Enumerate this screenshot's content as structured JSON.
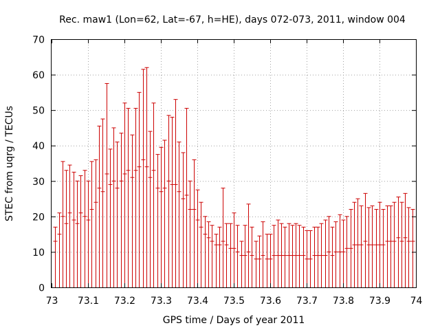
{
  "chart_data": {
    "type": "errorbar",
    "title": "Rec. maw1 (Lon=62, Lat=-67, h=HE), days 072-073, 2011, window 004",
    "xlabel": "GPS time / Days of year 2011",
    "ylabel": "STEC from uqrg / TECUs",
    "xlim": [
      73,
      74
    ],
    "ylim": [
      0,
      70
    ],
    "xticks": [
      "73",
      "73.1",
      "73.2",
      "73.3",
      "73.4",
      "73.5",
      "73.6",
      "73.7",
      "73.8",
      "73.9",
      "74"
    ],
    "yticks": [
      "0",
      "10",
      "20",
      "30",
      "40",
      "50",
      "60",
      "70"
    ],
    "grid": true,
    "color": "#cc0000",
    "x": [
      73.01,
      73.02,
      73.03,
      73.04,
      73.05,
      73.06,
      73.07,
      73.08,
      73.09,
      73.1,
      73.11,
      73.12,
      73.13,
      73.14,
      73.15,
      73.16,
      73.17,
      73.18,
      73.19,
      73.2,
      73.21,
      73.22,
      73.23,
      73.24,
      73.25,
      73.26,
      73.27,
      73.28,
      73.29,
      73.3,
      73.31,
      73.32,
      73.33,
      73.34,
      73.35,
      73.36,
      73.37,
      73.38,
      73.39,
      73.4,
      73.41,
      73.42,
      73.43,
      73.44,
      73.45,
      73.46,
      73.47,
      73.48,
      73.49,
      73.5,
      73.51,
      73.52,
      73.53,
      73.54,
      73.55,
      73.56,
      73.57,
      73.58,
      73.59,
      73.6,
      73.61,
      73.62,
      73.63,
      73.64,
      73.65,
      73.66,
      73.67,
      73.68,
      73.69,
      73.7,
      73.71,
      73.72,
      73.73,
      73.74,
      73.75,
      73.76,
      73.77,
      73.78,
      73.79,
      73.8,
      73.81,
      73.82,
      73.83,
      73.84,
      73.85,
      73.86,
      73.87,
      73.88,
      73.89,
      73.9,
      73.91,
      73.92,
      73.93,
      73.94,
      73.95,
      73.96,
      73.97,
      73.98,
      73.99
    ],
    "y_max": [
      17,
      21,
      35.5,
      33,
      34.5,
      32.5,
      30,
      31.5,
      33,
      30,
      35.5,
      36,
      45.5,
      47.5,
      57.5,
      39,
      45,
      41,
      43.5,
      52,
      50.5,
      43,
      50.5,
      55,
      61.5,
      62,
      44,
      52,
      37.5,
      39.5,
      41.5,
      48.5,
      48,
      53,
      41,
      38,
      50.5,
      30,
      36,
      27.5,
      24,
      20,
      18.5,
      17.5,
      15,
      17,
      28,
      18,
      18,
      21,
      17.5,
      13,
      17.5,
      23.5,
      17,
      13,
      14.5,
      18.5,
      15,
      15,
      17.5,
      19,
      18,
      17,
      18,
      17.5,
      18,
      17.5,
      17,
      16,
      16,
      17,
      17,
      18,
      19,
      20,
      17,
      18.5,
      20.5,
      19,
      20,
      22,
      24,
      25,
      23,
      26.5,
      22.5,
      23,
      22,
      24,
      22,
      23,
      23,
      24,
      25.5,
      24,
      26.5,
      22.5,
      22
    ],
    "y_mid": [
      13,
      15,
      20,
      18,
      21,
      19,
      18,
      21,
      20,
      19,
      22,
      24,
      28,
      27,
      32,
      29,
      30,
      28,
      30,
      32,
      33,
      31,
      33,
      34,
      36,
      34,
      31,
      33,
      28,
      27,
      28,
      30,
      29,
      29,
      27,
      25,
      26,
      22,
      22,
      19,
      17,
      15,
      14,
      13,
      12,
      12,
      13,
      12,
      11,
      11,
      10,
      9,
      9,
      10,
      9,
      8,
      8,
      9,
      8,
      8,
      9,
      9,
      9,
      9,
      9,
      9,
      9,
      9,
      9,
      8,
      8,
      9,
      9,
      9,
      9,
      10,
      9,
      10,
      10,
      10,
      11,
      11,
      12,
      12,
      12,
      13,
      12,
      12,
      12,
      12,
      12,
      13,
      13,
      13,
      14,
      13,
      14,
      13,
      13
    ]
  }
}
